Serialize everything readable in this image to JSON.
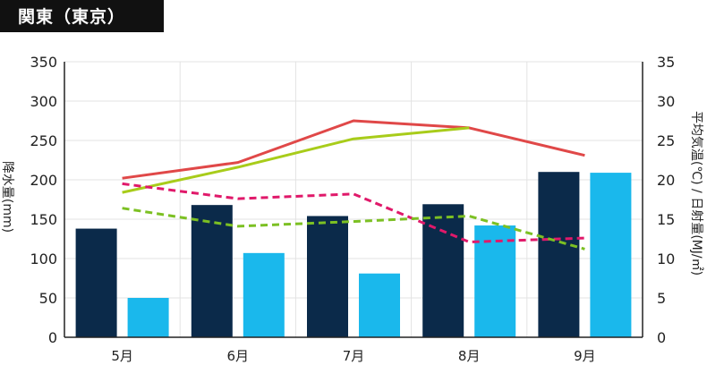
{
  "header": {
    "title": "関東（東京）"
  },
  "chart_data": {
    "type": "bar",
    "categories": [
      "5月",
      "6月",
      "7月",
      "8月",
      "9月"
    ],
    "ylabel_left": "降水量(mm)",
    "ylabel_right": "平均気温(℃) / 日射量(MJ/㎡)",
    "ylim_left": [
      0,
      350
    ],
    "ylim_right": [
      0,
      35
    ],
    "yticks_left": [
      "0",
      "50",
      "100",
      "150",
      "200",
      "250",
      "300",
      "350"
    ],
    "yticks_right": [
      "0",
      "5",
      "10",
      "15",
      "20",
      "25",
      "30",
      "35"
    ],
    "grid": true,
    "series": [
      {
        "kind": "bar",
        "axis": "left",
        "color": "#0b2a4a",
        "values": [
          138,
          168,
          154,
          169,
          210
        ]
      },
      {
        "kind": "bar",
        "axis": "left",
        "color": "#1ab8ec",
        "values": [
          50,
          107,
          81,
          142,
          209
        ]
      },
      {
        "kind": "line",
        "axis": "right",
        "color": "#e04848",
        "dash": false,
        "values": [
          20.2,
          22.2,
          27.5,
          26.6,
          23.1
        ]
      },
      {
        "kind": "line",
        "axis": "right",
        "color": "#a8cc1a",
        "dash": false,
        "values": [
          18.4,
          21.6,
          25.2,
          26.6,
          null
        ]
      },
      {
        "kind": "line",
        "axis": "right",
        "color": "#e0196a",
        "dash": true,
        "values": [
          19.5,
          17.6,
          18.2,
          12.1,
          12.6
        ]
      },
      {
        "kind": "line",
        "axis": "right",
        "color": "#7cc023",
        "dash": true,
        "values": [
          16.4,
          14.1,
          14.7,
          15.4,
          11.2
        ]
      }
    ]
  }
}
